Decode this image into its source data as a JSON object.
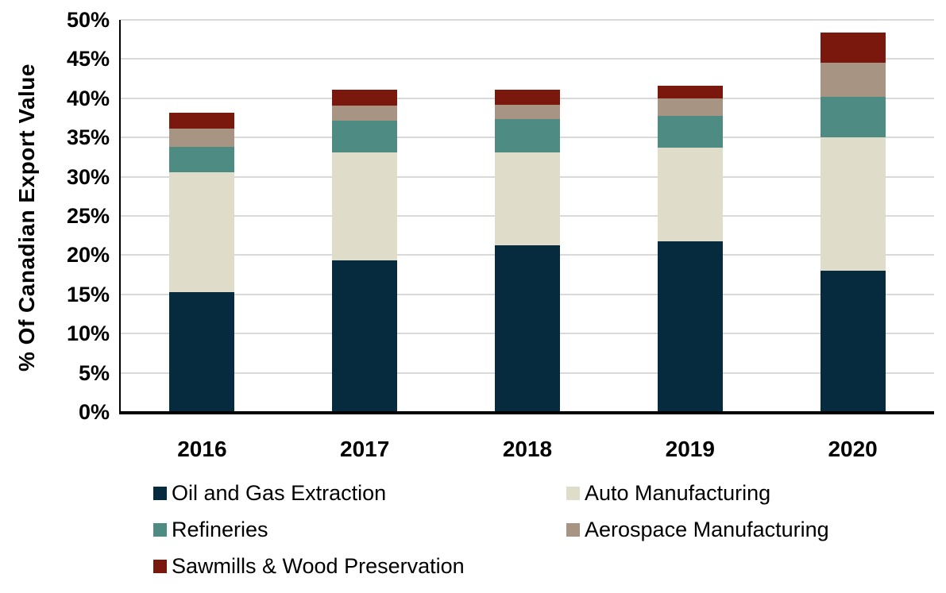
{
  "chart_data": {
    "type": "bar",
    "stacked": true,
    "title": "",
    "xlabel": "",
    "ylabel": "% Of Canadian Export Value",
    "categories": [
      "2016",
      "2017",
      "2018",
      "2019",
      "2020"
    ],
    "series": [
      {
        "name": "Oil and Gas Extraction",
        "color": "#072B3E",
        "values": [
          15.2,
          19.2,
          21.2,
          21.7,
          17.9
        ]
      },
      {
        "name": "Auto Manufacturing",
        "color": "#E0DCCA",
        "values": [
          15.3,
          13.8,
          11.8,
          11.9,
          17.0
        ]
      },
      {
        "name": "Refineries",
        "color": "#4E8C83",
        "values": [
          3.2,
          4.0,
          4.2,
          4.1,
          5.2
        ]
      },
      {
        "name": "Aerospace Manufacturing",
        "color": "#A89482",
        "values": [
          2.3,
          2.0,
          1.9,
          2.2,
          4.3
        ]
      },
      {
        "name": "Sawmills & Wood Preservation",
        "color": "#7B180D",
        "values": [
          2.1,
          2.0,
          1.9,
          1.6,
          3.9
        ]
      }
    ],
    "totals": [
      38.1,
      41.0,
      41.0,
      41.5,
      48.3
    ],
    "ylim": [
      0,
      50
    ],
    "ytick_step": 5,
    "ytick_labels": [
      "0%",
      "5%",
      "10%",
      "15%",
      "20%",
      "25%",
      "30%",
      "35%",
      "40%",
      "45%",
      "50%"
    ],
    "grid": true,
    "legend_position": "bottom"
  },
  "colors": {
    "background": "#FFFFFF",
    "grid": "#D9D9D9",
    "axis": "#000000",
    "text": "#000000"
  }
}
